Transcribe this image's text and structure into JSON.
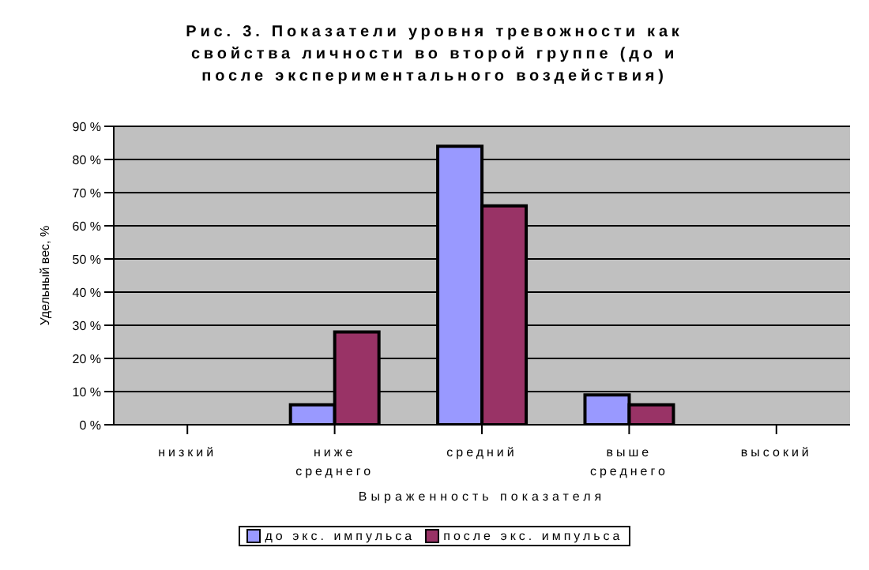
{
  "chart_data": {
    "type": "bar",
    "title": "Рис. 3. Показатели уровня тревожности как свойства личности во второй группе (до и после экспериментального воздействия)",
    "xlabel": "Выраженность показателя",
    "ylabel": "Удельный вес, %",
    "categories": [
      "низкий",
      "ниже среднего",
      "средний",
      "выше среднего",
      "высокий"
    ],
    "series": [
      {
        "name": "до экс. импульса",
        "color": "#9999ff",
        "values": [
          0,
          6,
          84,
          9,
          0
        ]
      },
      {
        "name": "после экс. импульса",
        "color": "#993366",
        "values": [
          0,
          28,
          66,
          6,
          0
        ]
      }
    ],
    "ylim": [
      0,
      90
    ],
    "yticks": [
      {
        "value": 0,
        "label": "0 %"
      },
      {
        "value": 10,
        "label": "10 %"
      },
      {
        "value": 20,
        "label": "20 %"
      },
      {
        "value": 30,
        "label": "30 %"
      },
      {
        "value": 40,
        "label": "40 %"
      },
      {
        "value": 50,
        "label": "50 %"
      },
      {
        "value": 60,
        "label": "60 %"
      },
      {
        "value": 70,
        "label": "70 %"
      },
      {
        "value": 80,
        "label": "80 %"
      },
      {
        "value": 90,
        "label": "90 %"
      }
    ],
    "grid": "y",
    "legend": "bottom"
  }
}
